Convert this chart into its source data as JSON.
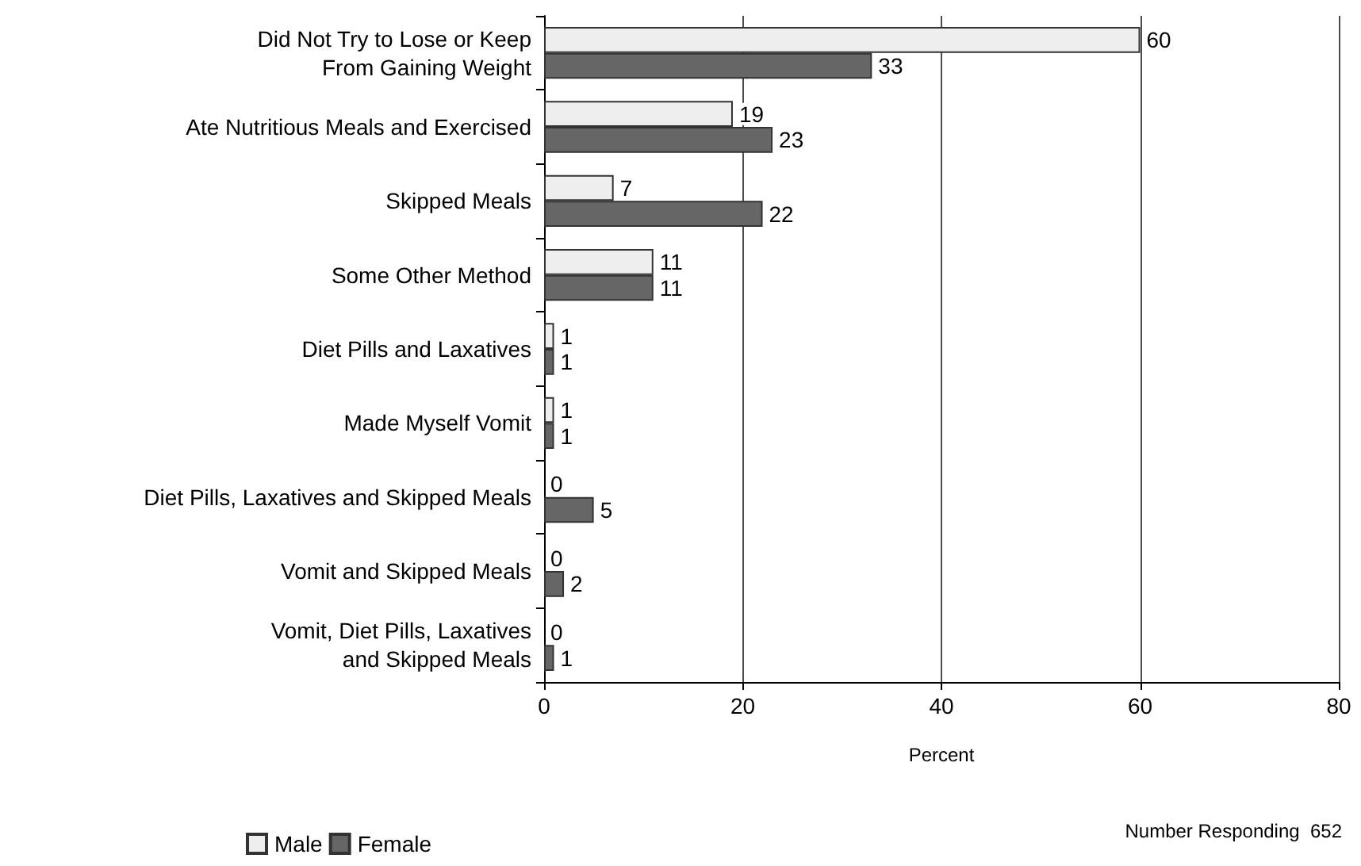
{
  "chart_data": {
    "type": "bar",
    "orientation": "horizontal",
    "categories": [
      "Did Not Try to Lose or Keep\nFrom Gaining Weight",
      "Ate Nutritious Meals and Exercised",
      "Skipped Meals",
      "Some Other Method",
      "Diet Pills and Laxatives",
      "Made Myself Vomit",
      "Diet Pills, Laxatives and Skipped Meals",
      "Vomit and Skipped Meals",
      "Vomit, Diet Pills, Laxatives\nand Skipped Meals"
    ],
    "series": [
      {
        "name": "Male",
        "color": "#eeeeee",
        "values": [
          60,
          19,
          7,
          11,
          1,
          1,
          0,
          0,
          0
        ]
      },
      {
        "name": "Female",
        "color": "#666666",
        "values": [
          33,
          23,
          22,
          11,
          1,
          1,
          5,
          2,
          1
        ]
      }
    ],
    "xlabel": "Percent",
    "xlim": [
      0,
      80
    ],
    "xticks": [
      0,
      20,
      40,
      60,
      80
    ],
    "grid": "x",
    "legend": "bottom left",
    "data_labels": true,
    "annotations": [
      "Number Responding  652"
    ]
  }
}
